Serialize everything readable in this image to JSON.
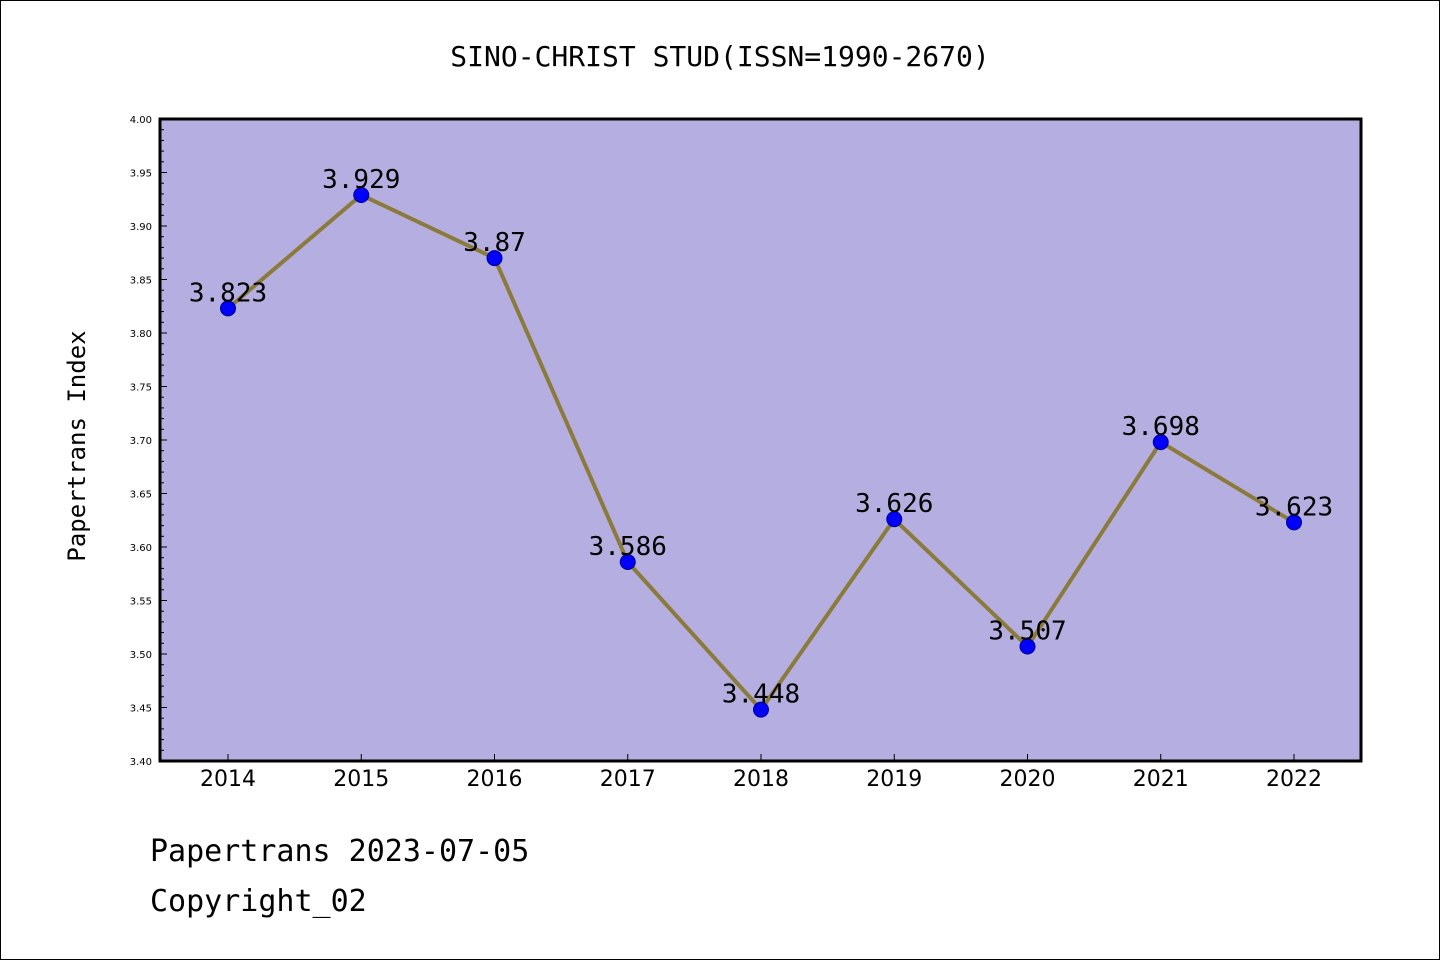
{
  "chart_data": {
    "type": "line",
    "title": "SINO-CHRIST STUD(ISSN=1990-2670)",
    "xlabel": "",
    "ylabel": "Papertrans Index",
    "categories": [
      "2014",
      "2015",
      "2016",
      "2017",
      "2018",
      "2019",
      "2020",
      "2021",
      "2022"
    ],
    "series": [
      {
        "values": [
          3.823,
          3.929,
          3.87,
          3.586,
          3.448,
          3.626,
          3.507,
          3.698,
          3.623
        ],
        "labels": [
          "3.823",
          "3.929",
          "3.87",
          "3.586",
          "3.448",
          "3.626",
          "3.507",
          "3.698",
          "3.623"
        ]
      }
    ],
    "ylim": [
      3.4,
      4.0
    ],
    "yticks": [
      "3.40",
      "3.45",
      "3.50",
      "3.55",
      "3.60",
      "3.65",
      "3.70",
      "3.75",
      "3.80",
      "3.85",
      "3.90",
      "3.95",
      "4.00"
    ],
    "grid": false,
    "legend": "none",
    "colors": {
      "plot_background": "#b5aee1",
      "line": "#8b7b3a",
      "marker": "#0000ff"
    }
  },
  "footer": {
    "line1": "Papertrans 2023-07-05",
    "line2": "Copyright_02"
  }
}
